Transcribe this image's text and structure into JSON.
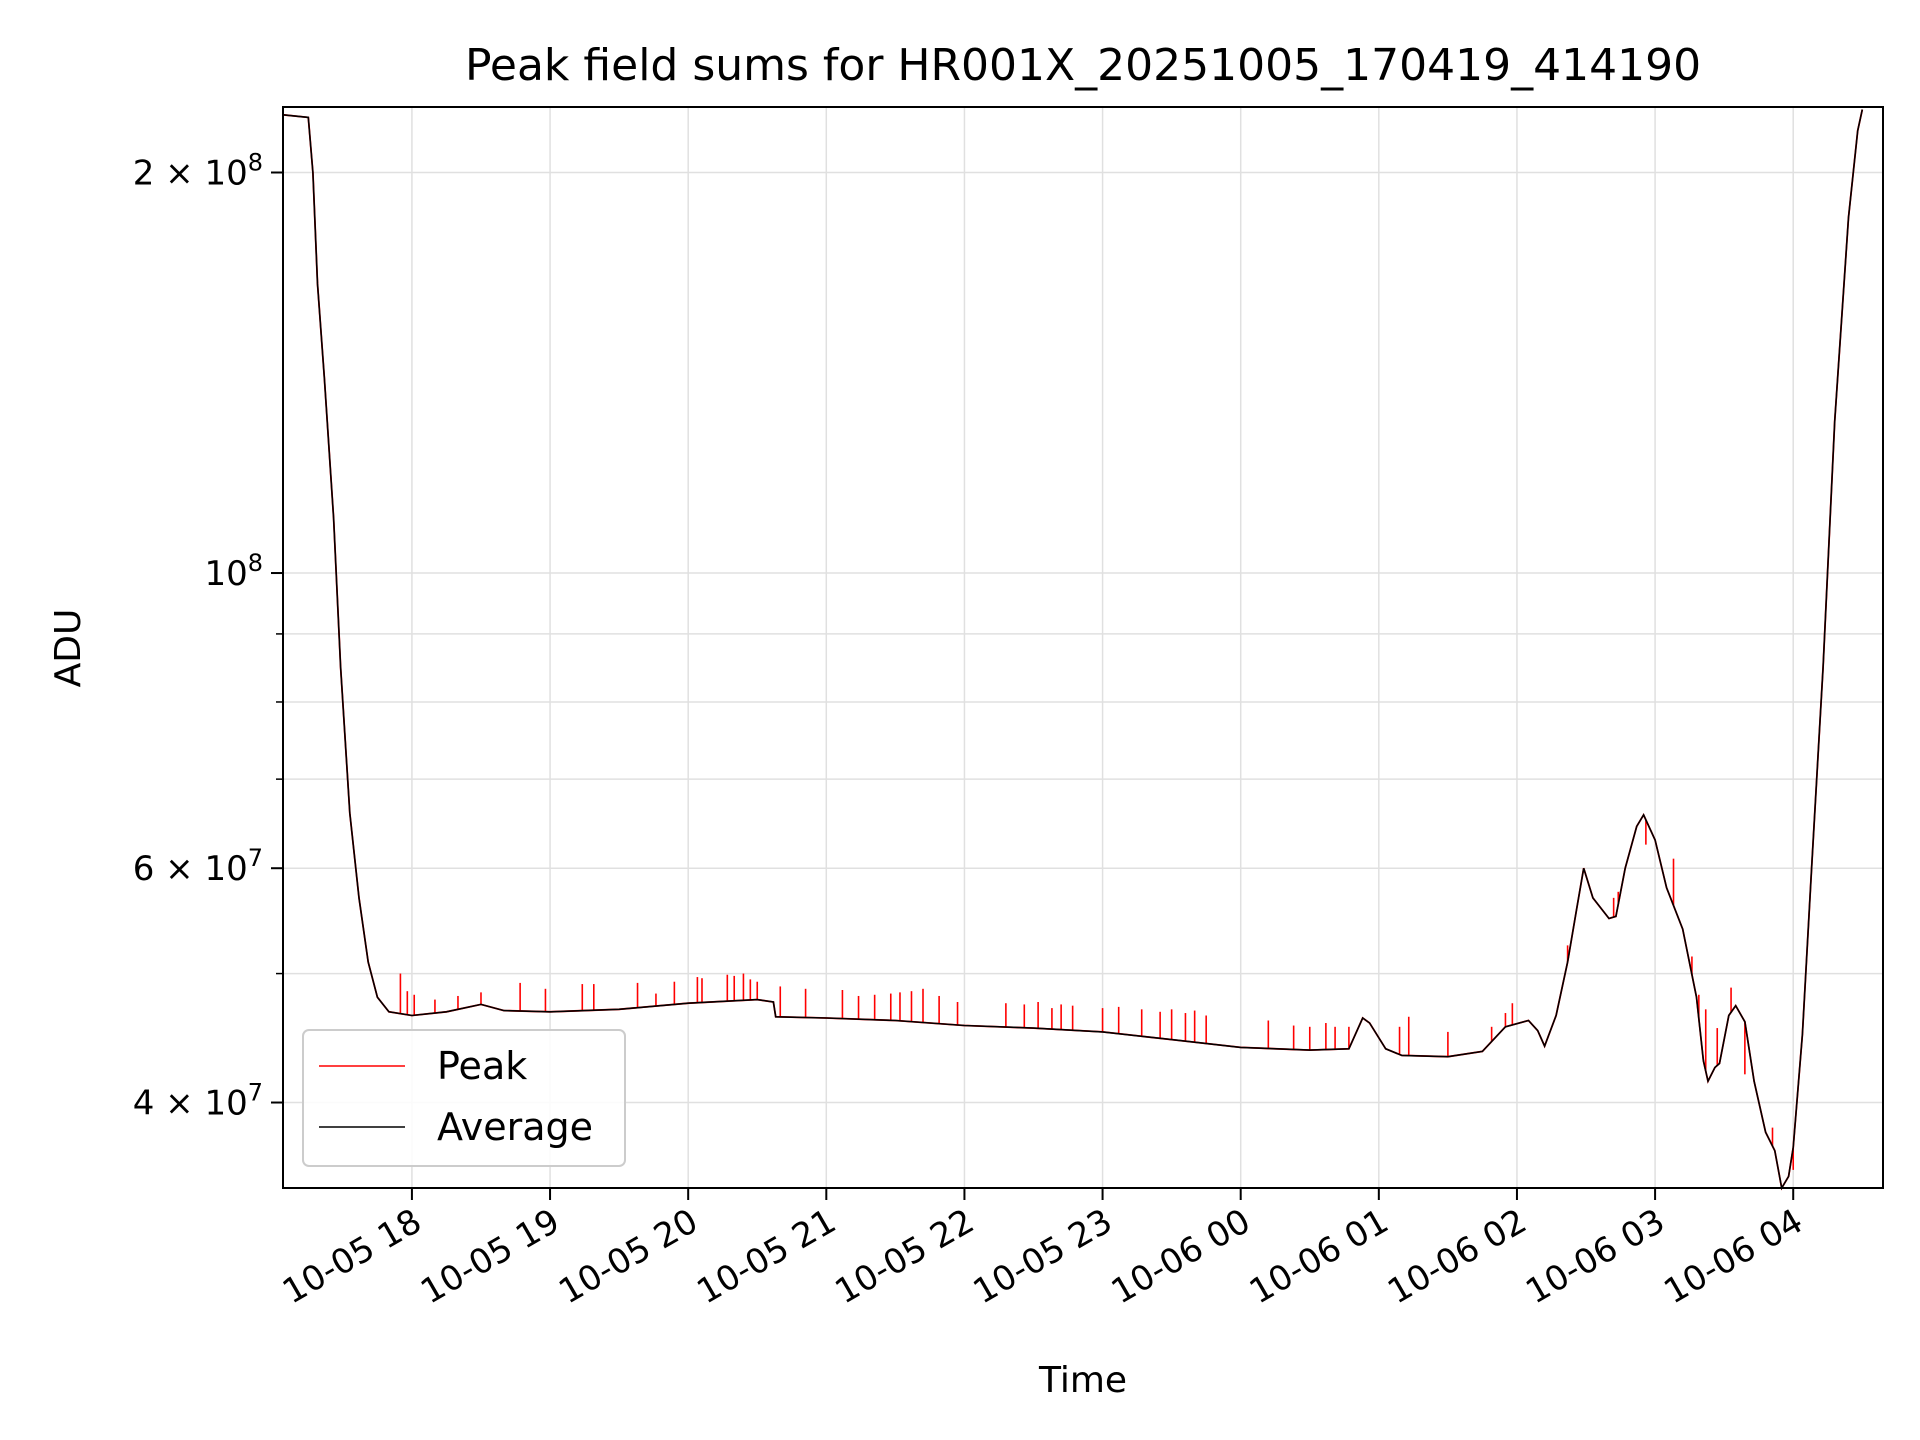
{
  "chart_data": {
    "type": "line",
    "title": "Peak field sums for HR001X_20251005_170419_414190",
    "xlabel": "Time",
    "ylabel": "ADU",
    "y_scale": "log",
    "grid": true,
    "legend_position": "lower-left",
    "xlim": [
      "2025-10-05 17:04",
      "2025-10-06 04:39"
    ],
    "ylim": [
      34500000,
      224000000
    ],
    "x_ticks": [
      {
        "value": "2025-10-05 18:00",
        "label": "10-05 18"
      },
      {
        "value": "2025-10-05 19:00",
        "label": "10-05 19"
      },
      {
        "value": "2025-10-05 20:00",
        "label": "10-05 20"
      },
      {
        "value": "2025-10-05 21:00",
        "label": "10-05 21"
      },
      {
        "value": "2025-10-05 22:00",
        "label": "10-05 22"
      },
      {
        "value": "2025-10-05 23:00",
        "label": "10-05 23"
      },
      {
        "value": "2025-10-06 00:00",
        "label": "10-06 00"
      },
      {
        "value": "2025-10-06 01:00",
        "label": "10-06 01"
      },
      {
        "value": "2025-10-06 02:00",
        "label": "10-06 02"
      },
      {
        "value": "2025-10-06 03:00",
        "label": "10-06 03"
      },
      {
        "value": "2025-10-06 04:00",
        "label": "10-06 04"
      }
    ],
    "y_ticks": [
      {
        "value": 40000000,
        "label_mantissa": "4 × 10",
        "label_exp": "7"
      },
      {
        "value": 60000000,
        "label_mantissa": "6 × 10",
        "label_exp": "7"
      },
      {
        "value": 100000000,
        "label_mantissa": "10",
        "label_exp": "8"
      },
      {
        "value": 200000000,
        "label_mantissa": "2 × 10",
        "label_exp": "8"
      }
    ],
    "y_minor_ticks": [
      50000000,
      70000000,
      80000000,
      90000000
    ],
    "series": [
      {
        "name": "Peak",
        "color": "#ff0000",
        "spikes": [
          [
            "2025-10-05 17:55",
            50000000
          ],
          [
            "2025-10-05 17:58",
            48500000
          ],
          [
            "2025-10-05 18:01",
            48200000
          ],
          [
            "2025-10-05 18:10",
            47800000
          ],
          [
            "2025-10-05 18:20",
            48100000
          ],
          [
            "2025-10-05 18:30",
            48400000
          ],
          [
            "2025-10-05 18:47",
            49200000
          ],
          [
            "2025-10-05 18:58",
            48700000
          ],
          [
            "2025-10-05 19:14",
            49100000
          ],
          [
            "2025-10-05 19:19",
            49100000
          ],
          [
            "2025-10-05 19:38",
            49200000
          ],
          [
            "2025-10-05 19:46",
            48300000
          ],
          [
            "2025-10-05 19:54",
            49300000
          ],
          [
            "2025-10-05 20:04",
            49700000
          ],
          [
            "2025-10-05 20:06",
            49600000
          ],
          [
            "2025-10-05 20:17",
            49900000
          ],
          [
            "2025-10-05 20:20",
            49800000
          ],
          [
            "2025-10-05 20:24",
            50000000
          ],
          [
            "2025-10-05 20:27",
            49500000
          ],
          [
            "2025-10-05 20:30",
            49300000
          ],
          [
            "2025-10-05 20:40",
            48900000
          ],
          [
            "2025-10-05 20:51",
            48700000
          ],
          [
            "2025-10-05 21:07",
            48600000
          ],
          [
            "2025-10-05 21:14",
            48100000
          ],
          [
            "2025-10-05 21:21",
            48200000
          ],
          [
            "2025-10-05 21:28",
            48300000
          ],
          [
            "2025-10-05 21:32",
            48400000
          ],
          [
            "2025-10-05 21:37",
            48500000
          ],
          [
            "2025-10-05 21:42",
            48700000
          ],
          [
            "2025-10-05 21:49",
            48100000
          ],
          [
            "2025-10-05 21:57",
            47600000
          ],
          [
            "2025-10-05 22:18",
            47500000
          ],
          [
            "2025-10-05 22:26",
            47400000
          ],
          [
            "2025-10-05 22:32",
            47600000
          ],
          [
            "2025-10-05 22:38",
            47100000
          ],
          [
            "2025-10-05 22:42",
            47400000
          ],
          [
            "2025-10-05 22:47",
            47300000
          ],
          [
            "2025-10-05 23:00",
            47100000
          ],
          [
            "2025-10-05 23:07",
            47200000
          ],
          [
            "2025-10-05 23:17",
            47000000
          ],
          [
            "2025-10-05 23:25",
            46800000
          ],
          [
            "2025-10-05 23:30",
            47000000
          ],
          [
            "2025-10-05 23:36",
            46700000
          ],
          [
            "2025-10-05 23:40",
            46900000
          ],
          [
            "2025-10-05 23:45",
            46500000
          ],
          [
            "2025-10-06 00:12",
            46100000
          ],
          [
            "2025-10-06 00:23",
            45700000
          ],
          [
            "2025-10-06 00:30",
            45600000
          ],
          [
            "2025-10-06 00:37",
            45900000
          ],
          [
            "2025-10-06 00:41",
            45600000
          ],
          [
            "2025-10-06 00:47",
            45600000
          ],
          [
            "2025-10-06 01:09",
            45600000
          ],
          [
            "2025-10-06 01:13",
            46400000
          ],
          [
            "2025-10-06 01:30",
            45200000
          ],
          [
            "2025-10-06 01:49",
            45600000
          ],
          [
            "2025-10-06 01:55",
            46700000
          ],
          [
            "2025-10-06 01:58",
            47500000
          ],
          [
            "2025-10-06 02:22",
            52500000
          ],
          [
            "2025-10-06 02:42",
            57000000
          ],
          [
            "2025-10-06 02:44",
            57600000
          ],
          [
            "2025-10-06 02:56",
            62500000
          ],
          [
            "2025-10-06 03:08",
            61000000
          ],
          [
            "2025-10-06 03:16",
            51500000
          ],
          [
            "2025-10-06 03:19",
            48200000
          ],
          [
            "2025-10-06 03:22",
            47000000
          ],
          [
            "2025-10-06 03:27",
            45500000
          ],
          [
            "2025-10-06 03:33",
            48800000
          ],
          [
            "2025-10-06 03:39",
            42000000
          ],
          [
            "2025-10-06 03:51",
            38300000
          ],
          [
            "2025-10-06 04:00",
            35600000
          ]
        ]
      },
      {
        "name": "Average",
        "color": "#000000",
        "points": [
          [
            "2025-10-05 17:04",
            221000000
          ],
          [
            "2025-10-05 17:15",
            220000000
          ],
          [
            "2025-10-05 17:17",
            200000000
          ],
          [
            "2025-10-05 17:19",
            165000000
          ],
          [
            "2025-10-05 17:22",
            140000000
          ],
          [
            "2025-10-05 17:26",
            110000000
          ],
          [
            "2025-10-05 17:29",
            85000000
          ],
          [
            "2025-10-05 17:33",
            66000000
          ],
          [
            "2025-10-05 17:37",
            57000000
          ],
          [
            "2025-10-05 17:41",
            51000000
          ],
          [
            "2025-10-05 17:45",
            48000000
          ],
          [
            "2025-10-05 17:50",
            46800000
          ],
          [
            "2025-10-05 18:00",
            46500000
          ],
          [
            "2025-10-05 18:15",
            46800000
          ],
          [
            "2025-10-05 18:30",
            47400000
          ],
          [
            "2025-10-05 18:40",
            46900000
          ],
          [
            "2025-10-05 19:00",
            46800000
          ],
          [
            "2025-10-05 19:30",
            47000000
          ],
          [
            "2025-10-05 20:00",
            47500000
          ],
          [
            "2025-10-05 20:30",
            47800000
          ],
          [
            "2025-10-05 20:37",
            47600000
          ],
          [
            "2025-10-05 20:38",
            46400000
          ],
          [
            "2025-10-05 21:00",
            46300000
          ],
          [
            "2025-10-05 21:30",
            46100000
          ],
          [
            "2025-10-05 22:00",
            45700000
          ],
          [
            "2025-10-05 22:30",
            45500000
          ],
          [
            "2025-10-05 23:00",
            45200000
          ],
          [
            "2025-10-05 23:30",
            44600000
          ],
          [
            "2025-10-06 00:00",
            44000000
          ],
          [
            "2025-10-06 00:30",
            43800000
          ],
          [
            "2025-10-06 00:47",
            43900000
          ],
          [
            "2025-10-06 00:53",
            46300000
          ],
          [
            "2025-10-06 00:56",
            45900000
          ],
          [
            "2025-10-06 01:03",
            43900000
          ],
          [
            "2025-10-06 01:10",
            43400000
          ],
          [
            "2025-10-06 01:30",
            43300000
          ],
          [
            "2025-10-06 01:45",
            43700000
          ],
          [
            "2025-10-06 01:55",
            45600000
          ],
          [
            "2025-10-06 02:05",
            46100000
          ],
          [
            "2025-10-06 02:09",
            45300000
          ],
          [
            "2025-10-06 02:12",
            44100000
          ],
          [
            "2025-10-06 02:17",
            46500000
          ],
          [
            "2025-10-06 02:22",
            51000000
          ],
          [
            "2025-10-06 02:26",
            56000000
          ],
          [
            "2025-10-06 02:29",
            60000000
          ],
          [
            "2025-10-06 02:33",
            57000000
          ],
          [
            "2025-10-06 02:40",
            55000000
          ],
          [
            "2025-10-06 02:43",
            55200000
          ],
          [
            "2025-10-06 02:47",
            60000000
          ],
          [
            "2025-10-06 02:52",
            64500000
          ],
          [
            "2025-10-06 02:55",
            65800000
          ],
          [
            "2025-10-06 03:00",
            63000000
          ],
          [
            "2025-10-06 03:05",
            58000000
          ],
          [
            "2025-10-06 03:12",
            54000000
          ],
          [
            "2025-10-06 03:18",
            48000000
          ],
          [
            "2025-10-06 03:21",
            43000000
          ],
          [
            "2025-10-06 03:23",
            41500000
          ],
          [
            "2025-10-06 03:26",
            42500000
          ],
          [
            "2025-10-06 03:28",
            42800000
          ],
          [
            "2025-10-06 03:32",
            46500000
          ],
          [
            "2025-10-06 03:35",
            47300000
          ],
          [
            "2025-10-06 03:39",
            46000000
          ],
          [
            "2025-10-06 03:43",
            41500000
          ],
          [
            "2025-10-06 03:48",
            38000000
          ],
          [
            "2025-10-06 03:52",
            36800000
          ],
          [
            "2025-10-06 03:55",
            34500000
          ],
          [
            "2025-10-06 03:58",
            35200000
          ],
          [
            "2025-10-06 04:00",
            37000000
          ],
          [
            "2025-10-06 04:04",
            45000000
          ],
          [
            "2025-10-06 04:08",
            60000000
          ],
          [
            "2025-10-06 04:13",
            85000000
          ],
          [
            "2025-10-06 04:18",
            130000000
          ],
          [
            "2025-10-06 04:24",
            185000000
          ],
          [
            "2025-10-06 04:28",
            215000000
          ],
          [
            "2025-10-06 04:30",
            223000000
          ]
        ]
      }
    ]
  }
}
